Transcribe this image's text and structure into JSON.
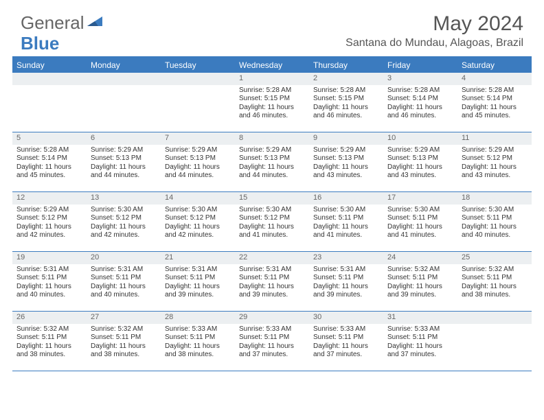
{
  "brand": {
    "part1": "General",
    "part2": "Blue"
  },
  "title": "May 2024",
  "location": "Santana do Mundau, Alagoas, Brazil",
  "colors": {
    "header_bg": "#3b7bbf",
    "daynum_bg": "#eceff1",
    "text": "#333333",
    "title_text": "#555555"
  },
  "day_names": [
    "Sunday",
    "Monday",
    "Tuesday",
    "Wednesday",
    "Thursday",
    "Friday",
    "Saturday"
  ],
  "weeks": [
    [
      null,
      null,
      null,
      {
        "n": "1",
        "sr": "5:28 AM",
        "ss": "5:15 PM",
        "dl": "11 hours and 46 minutes."
      },
      {
        "n": "2",
        "sr": "5:28 AM",
        "ss": "5:15 PM",
        "dl": "11 hours and 46 minutes."
      },
      {
        "n": "3",
        "sr": "5:28 AM",
        "ss": "5:14 PM",
        "dl": "11 hours and 46 minutes."
      },
      {
        "n": "4",
        "sr": "5:28 AM",
        "ss": "5:14 PM",
        "dl": "11 hours and 45 minutes."
      }
    ],
    [
      {
        "n": "5",
        "sr": "5:28 AM",
        "ss": "5:14 PM",
        "dl": "11 hours and 45 minutes."
      },
      {
        "n": "6",
        "sr": "5:29 AM",
        "ss": "5:13 PM",
        "dl": "11 hours and 44 minutes."
      },
      {
        "n": "7",
        "sr": "5:29 AM",
        "ss": "5:13 PM",
        "dl": "11 hours and 44 minutes."
      },
      {
        "n": "8",
        "sr": "5:29 AM",
        "ss": "5:13 PM",
        "dl": "11 hours and 44 minutes."
      },
      {
        "n": "9",
        "sr": "5:29 AM",
        "ss": "5:13 PM",
        "dl": "11 hours and 43 minutes."
      },
      {
        "n": "10",
        "sr": "5:29 AM",
        "ss": "5:13 PM",
        "dl": "11 hours and 43 minutes."
      },
      {
        "n": "11",
        "sr": "5:29 AM",
        "ss": "5:12 PM",
        "dl": "11 hours and 43 minutes."
      }
    ],
    [
      {
        "n": "12",
        "sr": "5:29 AM",
        "ss": "5:12 PM",
        "dl": "11 hours and 42 minutes."
      },
      {
        "n": "13",
        "sr": "5:30 AM",
        "ss": "5:12 PM",
        "dl": "11 hours and 42 minutes."
      },
      {
        "n": "14",
        "sr": "5:30 AM",
        "ss": "5:12 PM",
        "dl": "11 hours and 42 minutes."
      },
      {
        "n": "15",
        "sr": "5:30 AM",
        "ss": "5:12 PM",
        "dl": "11 hours and 41 minutes."
      },
      {
        "n": "16",
        "sr": "5:30 AM",
        "ss": "5:11 PM",
        "dl": "11 hours and 41 minutes."
      },
      {
        "n": "17",
        "sr": "5:30 AM",
        "ss": "5:11 PM",
        "dl": "11 hours and 41 minutes."
      },
      {
        "n": "18",
        "sr": "5:30 AM",
        "ss": "5:11 PM",
        "dl": "11 hours and 40 minutes."
      }
    ],
    [
      {
        "n": "19",
        "sr": "5:31 AM",
        "ss": "5:11 PM",
        "dl": "11 hours and 40 minutes."
      },
      {
        "n": "20",
        "sr": "5:31 AM",
        "ss": "5:11 PM",
        "dl": "11 hours and 40 minutes."
      },
      {
        "n": "21",
        "sr": "5:31 AM",
        "ss": "5:11 PM",
        "dl": "11 hours and 39 minutes."
      },
      {
        "n": "22",
        "sr": "5:31 AM",
        "ss": "5:11 PM",
        "dl": "11 hours and 39 minutes."
      },
      {
        "n": "23",
        "sr": "5:31 AM",
        "ss": "5:11 PM",
        "dl": "11 hours and 39 minutes."
      },
      {
        "n": "24",
        "sr": "5:32 AM",
        "ss": "5:11 PM",
        "dl": "11 hours and 39 minutes."
      },
      {
        "n": "25",
        "sr": "5:32 AM",
        "ss": "5:11 PM",
        "dl": "11 hours and 38 minutes."
      }
    ],
    [
      {
        "n": "26",
        "sr": "5:32 AM",
        "ss": "5:11 PM",
        "dl": "11 hours and 38 minutes."
      },
      {
        "n": "27",
        "sr": "5:32 AM",
        "ss": "5:11 PM",
        "dl": "11 hours and 38 minutes."
      },
      {
        "n": "28",
        "sr": "5:33 AM",
        "ss": "5:11 PM",
        "dl": "11 hours and 38 minutes."
      },
      {
        "n": "29",
        "sr": "5:33 AM",
        "ss": "5:11 PM",
        "dl": "11 hours and 37 minutes."
      },
      {
        "n": "30",
        "sr": "5:33 AM",
        "ss": "5:11 PM",
        "dl": "11 hours and 37 minutes."
      },
      {
        "n": "31",
        "sr": "5:33 AM",
        "ss": "5:11 PM",
        "dl": "11 hours and 37 minutes."
      },
      null
    ]
  ],
  "labels": {
    "sunrise": "Sunrise:",
    "sunset": "Sunset:",
    "daylight": "Daylight:"
  }
}
